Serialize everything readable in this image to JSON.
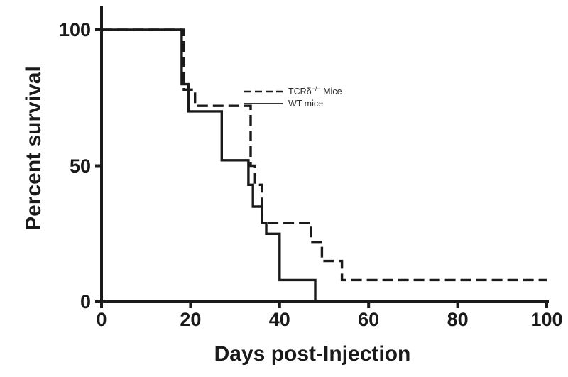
{
  "legend": {
    "tcr": {
      "pre": "TCRδ",
      "sup": "−/−",
      "post": " Mice"
    },
    "wt": "WT mice"
  },
  "chart_data": {
    "type": "line",
    "subtype": "kaplan-meier-survival-step",
    "title": "",
    "xlabel": "Days post-Injection",
    "ylabel": "Percent survival",
    "xlim": [
      0,
      100
    ],
    "ylim": [
      0,
      100
    ],
    "xticks": [
      0,
      20,
      40,
      60,
      80,
      100
    ],
    "yticks": [
      0,
      50,
      100
    ],
    "grid": false,
    "legend_position": "inside-upper-middle",
    "line_color": "#1a1a1a",
    "series": [
      {
        "name": "TCRδ−/− Mice",
        "style": "dashed",
        "color": "#1a1a1a",
        "steps": [
          [
            0,
            100
          ],
          [
            18.5,
            78
          ],
          [
            21,
            72
          ],
          [
            33.5,
            50
          ],
          [
            34.5,
            43
          ],
          [
            36,
            29
          ],
          [
            47,
            22
          ],
          [
            49.5,
            15
          ],
          [
            54,
            8
          ],
          [
            100,
            8
          ]
        ]
      },
      {
        "name": "WT mice",
        "style": "solid",
        "color": "#1a1a1a",
        "steps": [
          [
            0,
            100
          ],
          [
            18,
            80
          ],
          [
            19.5,
            70
          ],
          [
            27,
            52
          ],
          [
            33,
            43
          ],
          [
            34,
            35
          ],
          [
            36,
            29
          ],
          [
            37,
            25
          ],
          [
            40,
            8
          ],
          [
            48,
            0
          ]
        ]
      }
    ]
  }
}
